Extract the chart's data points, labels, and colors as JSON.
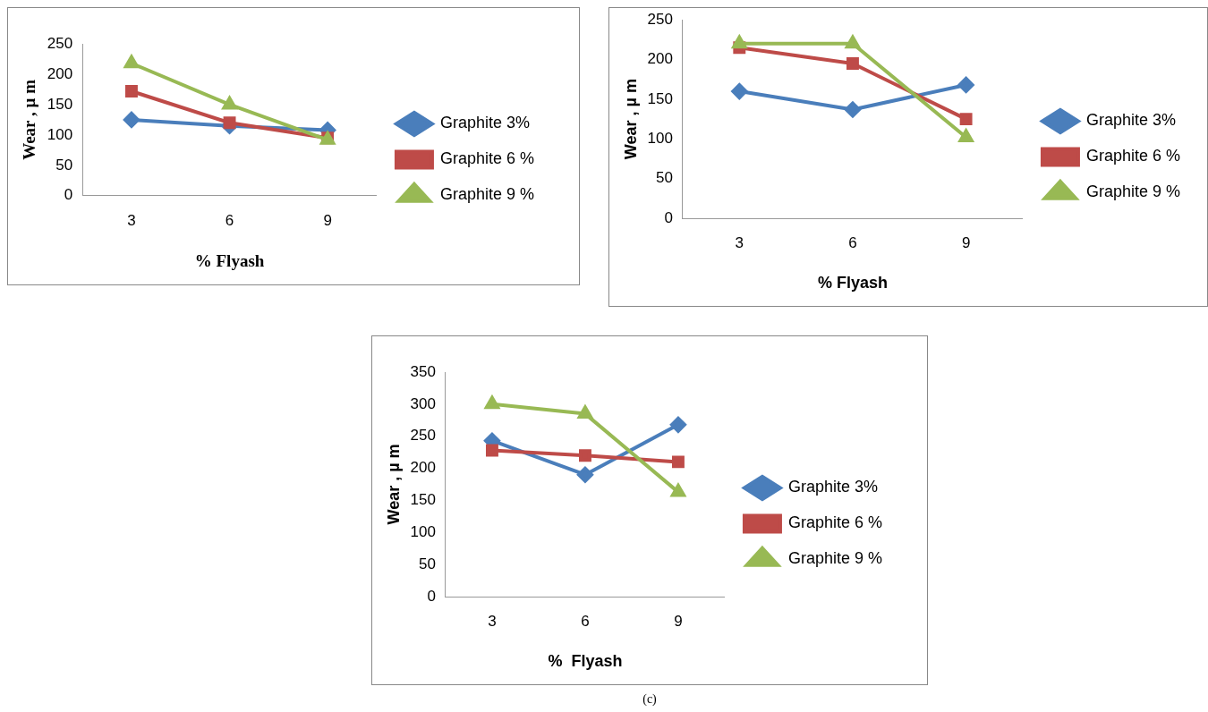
{
  "chart_data": [
    {
      "type": "line",
      "xlabel": "% Flyash",
      "ylabel": "Wear , µ m",
      "categories": [
        "3",
        "6",
        "9"
      ],
      "ylim": [
        0,
        250
      ],
      "yticks": [
        0,
        50,
        100,
        150,
        200,
        250
      ],
      "legend": "right",
      "grid": false,
      "series": [
        {
          "name": "Graphite 3%",
          "color": "#4a7ebb",
          "marker": "diamond",
          "values": [
            125,
            115,
            108
          ]
        },
        {
          "name": "Graphite 6 %",
          "color": "#be4b48",
          "marker": "square",
          "values": [
            172,
            120,
            95
          ]
        },
        {
          "name": "Graphite 9 %",
          "color": "#98b954",
          "marker": "triangle",
          "values": [
            218,
            150,
            92
          ]
        }
      ]
    },
    {
      "type": "line",
      "xlabel": "% Flyash",
      "ylabel": "Wear , µ m",
      "categories": [
        "3",
        "6",
        "9"
      ],
      "ylim": [
        0,
        250
      ],
      "yticks": [
        0,
        50,
        100,
        150,
        200,
        250
      ],
      "legend": "right",
      "grid": false,
      "series": [
        {
          "name": "Graphite 3%",
          "color": "#4a7ebb",
          "marker": "diamond",
          "values": [
            160,
            137,
            168
          ]
        },
        {
          "name": "Graphite 6 %",
          "color": "#be4b48",
          "marker": "square",
          "values": [
            215,
            195,
            125
          ]
        },
        {
          "name": "Graphite 9 %",
          "color": "#98b954",
          "marker": "triangle",
          "values": [
            220,
            220,
            102
          ]
        }
      ]
    },
    {
      "type": "line",
      "xlabel": "%  Flyash",
      "ylabel": "Wear , µ m",
      "categories": [
        "3",
        "6",
        "9"
      ],
      "ylim": [
        0,
        350
      ],
      "yticks": [
        0,
        50,
        100,
        150,
        200,
        250,
        300,
        350
      ],
      "legend": "right",
      "grid": false,
      "annotations": [
        "(c)"
      ],
      "series": [
        {
          "name": "Graphite 3%",
          "color": "#4a7ebb",
          "marker": "diamond",
          "values": [
            243,
            190,
            268
          ]
        },
        {
          "name": "Graphite 6 %",
          "color": "#be4b48",
          "marker": "square",
          "values": [
            228,
            220,
            210
          ]
        },
        {
          "name": "Graphite 9 %",
          "color": "#98b954",
          "marker": "triangle",
          "values": [
            300,
            285,
            163
          ]
        }
      ]
    }
  ]
}
